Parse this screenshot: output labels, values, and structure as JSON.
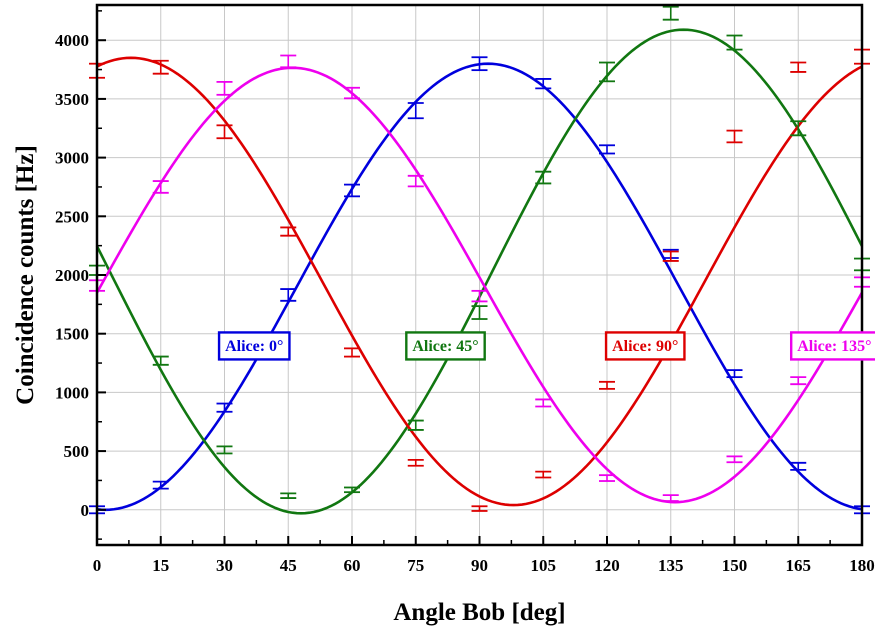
{
  "chart_data": {
    "type": "scatter",
    "title": "",
    "xlabel": "Angle Bob [deg]",
    "ylabel": "Coincidence counts [Hz]",
    "xlim": [
      0,
      180
    ],
    "ylim": [
      -300,
      4300
    ],
    "x_ticks": [
      "0",
      "15",
      "30",
      "45",
      "60",
      "75",
      "90",
      "105",
      "120",
      "135",
      "150",
      "165",
      "180"
    ],
    "y_ticks": [
      "0",
      "500",
      "1000",
      "1500",
      "2000",
      "2500",
      "3000",
      "3500",
      "4000"
    ],
    "grid": true,
    "x": [
      0,
      15,
      30,
      45,
      60,
      75,
      90,
      105,
      120,
      135,
      150,
      165,
      180
    ],
    "series": [
      {
        "name": "Alice: 0°",
        "color": "#0000dd",
        "values": [
          0,
          210,
          870,
          1830,
          2720,
          3400,
          3800,
          3630,
          3070,
          2180,
          1160,
          370,
          0
        ],
        "errors": [
          30,
          30,
          35,
          50,
          50,
          65,
          55,
          40,
          35,
          35,
          30,
          30,
          30
        ],
        "fit": {
          "offset": 1900,
          "amplitude": 1900,
          "phase_deg": 92
        }
      },
      {
        "name": "Alice: 45°",
        "color": "#117711",
        "values": [
          2040,
          1270,
          510,
          120,
          170,
          720,
          1680,
          2830,
          3730,
          4230,
          3980,
          3250,
          2090
        ],
        "errors": [
          40,
          35,
          30,
          20,
          20,
          40,
          55,
          50,
          80,
          55,
          60,
          60,
          50
        ],
        "fit": {
          "offset": 2030,
          "amplitude": 2060,
          "phase_deg": 138
        }
      },
      {
        "name": "Alice: 90°",
        "color": "#dd0000",
        "values": [
          3740,
          3770,
          3220,
          2370,
          1340,
          400,
          10,
          300,
          1060,
          2160,
          3180,
          3770,
          3860
        ],
        "errors": [
          60,
          55,
          55,
          35,
          35,
          25,
          20,
          25,
          30,
          40,
          50,
          40,
          60
        ],
        "fit": {
          "offset": 1945,
          "amplitude": 1905,
          "phase_deg": 8
        }
      },
      {
        "name": "Alice: 135°",
        "color": "#ee00ee",
        "values": [
          1910,
          2750,
          3590,
          3820,
          3550,
          2800,
          1820,
          910,
          270,
          100,
          430,
          1100,
          1940
        ],
        "errors": [
          45,
          50,
          55,
          50,
          45,
          45,
          45,
          30,
          25,
          25,
          25,
          30,
          40
        ],
        "fit": {
          "offset": 1915,
          "amplitude": 1850,
          "phase_deg": 46
        }
      }
    ]
  }
}
